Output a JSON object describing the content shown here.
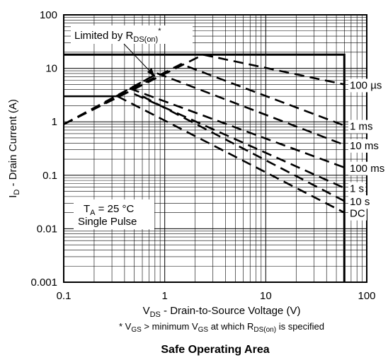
{
  "chart_data": {
    "type": "line",
    "title": "Safe Operating Area",
    "xlabel": {
      "main": "V",
      "sub": "DS",
      "rest": " - Drain-to-Source Voltage (V)"
    },
    "ylabel": {
      "main": "I",
      "sub": "D",
      "rest": " - Drain Current (A)"
    },
    "x_scale": "log",
    "y_scale": "log",
    "xlim": [
      0.1,
      100
    ],
    "ylim": [
      0.001,
      100
    ],
    "x_tick_labels": [
      "0.1",
      "1",
      "10",
      "100"
    ],
    "y_tick_labels": [
      "100",
      "10",
      "1",
      "0.1",
      "0.01",
      "0.001"
    ],
    "grid": true,
    "footnote": {
      "prefix": "* V",
      "sub1": "GS",
      "mid": " > minimum V",
      "sub2": "GS",
      "mid2": " at which R",
      "sub3": "DS(on)",
      "suffix": " is specified"
    },
    "annotations": {
      "limit": {
        "prefix": "Limited by R",
        "sub": "DS(on)",
        "sup": "*"
      },
      "conditions": {
        "line1_prefix": "T",
        "line1_sub": "A",
        "line1_rest": " = 25 °C",
        "line2": "Single Pulse"
      }
    },
    "boundary": {
      "vds_max": 60,
      "id_pulse_max": 18,
      "id_dc_max": 3,
      "points": [
        [
          0.1,
          18
        ],
        [
          60,
          18
        ],
        [
          60,
          0.001
        ]
      ],
      "dc_points": [
        [
          0.1,
          3
        ],
        [
          0.34,
          3
        ]
      ]
    },
    "series": [
      {
        "name": "100 µs",
        "values": [
          [
            0.1,
            0.9
          ],
          [
            2.4,
            18
          ],
          [
            60,
            5
          ]
        ]
      },
      {
        "name": "1 ms",
        "values": [
          [
            0.25,
            2.2
          ],
          [
            1.45,
            12
          ],
          [
            60,
            0.85
          ]
        ]
      },
      {
        "name": "10 ms",
        "values": [
          [
            0.33,
            3
          ],
          [
            0.85,
            8
          ],
          [
            60,
            0.37
          ]
        ]
      },
      {
        "name": "100 ms",
        "values": [
          [
            0.45,
            4.2
          ],
          [
            60,
            0.14
          ]
        ]
      },
      {
        "name": "1 s",
        "values": [
          [
            0.5,
            3.3
          ],
          [
            60,
            0.058
          ]
        ]
      },
      {
        "name": "10 s",
        "values": [
          [
            0.6,
            3
          ],
          [
            60,
            0.033
          ]
        ]
      },
      {
        "name": "DC",
        "values": [
          [
            0.34,
            3
          ],
          [
            60,
            0.02
          ]
        ]
      }
    ],
    "rdson_limit": [
      [
        0.1,
        0.9
      ],
      [
        0.85,
        8
      ]
    ]
  }
}
